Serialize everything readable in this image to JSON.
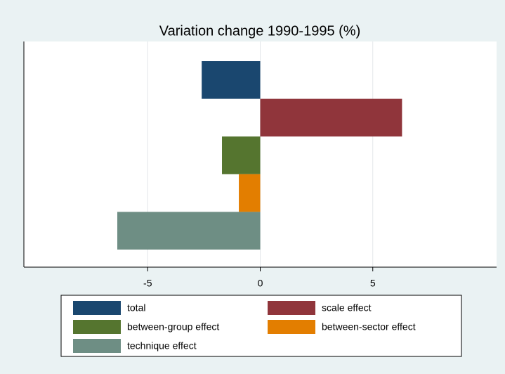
{
  "chart_data": {
    "type": "hbar",
    "title": "Variation change 1990-1995 (%)",
    "series": [
      {
        "name": "total",
        "color": "#1a476f",
        "values": [
          -2.6
        ]
      },
      {
        "name": "scale effect",
        "color": "#90353b",
        "values": [
          6.3
        ]
      },
      {
        "name": "between-group effect",
        "color": "#55752f",
        "values": [
          -1.7
        ]
      },
      {
        "name": "between-sector effect",
        "color": "#e37e00",
        "values": [
          -0.95
        ]
      },
      {
        "name": "technique effect",
        "color": "#6e8e84",
        "values": [
          -6.35
        ]
      }
    ],
    "xlim": [
      -10.5,
      10.5
    ],
    "xticks": [
      -5,
      0,
      5
    ],
    "grid": true
  }
}
